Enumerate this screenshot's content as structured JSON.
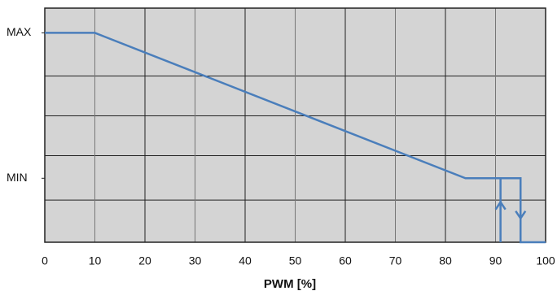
{
  "chart_data": {
    "type": "line",
    "x_label": "PWM [%]",
    "series": [
      {
        "color": "#4a7ebb",
        "x": [
          0,
          10,
          84,
          95,
          95,
          100
        ],
        "values": [
          100,
          100,
          0,
          0,
          -44,
          -44
        ]
      },
      {
        "color": "#4a7ebb",
        "x": [
          91,
          91
        ],
        "values": [
          -44,
          0
        ]
      }
    ],
    "xlim": [
      0,
      100
    ],
    "xticks": [
      0,
      10,
      20,
      30,
      40,
      50,
      60,
      70,
      80,
      90,
      100
    ],
    "ylim": [
      -44,
      117
    ],
    "yticks": [
      {
        "value": 100,
        "label": "MAX"
      },
      {
        "value": 0,
        "label": "MIN"
      }
    ],
    "grid": true
  }
}
